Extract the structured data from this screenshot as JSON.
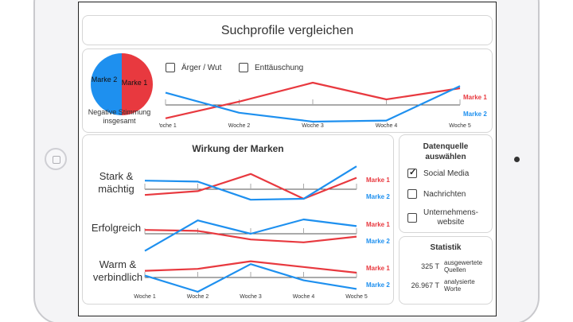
{
  "page_title": "Suchprofile vergleichen",
  "colors": {
    "marke1": "#e8393f",
    "marke2": "#1e90ef",
    "axis": "#555555"
  },
  "weeks": [
    "Woche 1",
    "Woche 2",
    "Woche 3",
    "Woche 4",
    "Woche 5"
  ],
  "top": {
    "pie": {
      "slices": [
        {
          "label": "Marke 1",
          "value": 50
        },
        {
          "label": "Marke 2",
          "value": 50
        }
      ]
    },
    "pie_caption_line1": "Negative Stimmung",
    "pie_caption_line2": "insgesamt",
    "filters": [
      {
        "label": "Ärger / Wut",
        "checked": false
      },
      {
        "label": "Enttäuschung",
        "checked": false
      }
    ]
  },
  "main": {
    "title": "Wirkung der Marken",
    "rows": [
      {
        "label_line1": "Stark &",
        "label_line2": "mächtig"
      },
      {
        "label_line1": "Erfolgreich",
        "label_line2": ""
      },
      {
        "label_line1": "Warm &",
        "label_line2": "verbindlich"
      }
    ]
  },
  "source": {
    "title_line1": "Datenquelle",
    "title_line2": "auswählen",
    "options": [
      {
        "label_line1": "Social Media",
        "label_line2": "",
        "checked": true
      },
      {
        "label_line1": "Nachrichten",
        "label_line2": "",
        "checked": false
      },
      {
        "label_line1": "Unternehmens-",
        "label_line2": "website",
        "checked": false
      }
    ]
  },
  "stats": {
    "title": "Statistik",
    "items": [
      {
        "value": "325 T",
        "desc_line1": "ausgewertete",
        "desc_line2": "Quellen"
      },
      {
        "value": "26.967 T",
        "desc_line1": "analysierte",
        "desc_line2": "Worte"
      }
    ]
  },
  "chart_data": [
    {
      "type": "line",
      "title": "",
      "categories": [
        "Woche 1",
        "Woche 2",
        "Woche 3",
        "Woche 4",
        "Woche 5"
      ],
      "series": [
        {
          "name": "Marke 1",
          "values": [
            -0.6,
            0.15,
            1.0,
            0.25,
            0.75
          ]
        },
        {
          "name": "Marke 2",
          "values": [
            0.55,
            -0.35,
            -0.75,
            -0.7,
            0.85
          ]
        }
      ],
      "ylim": [
        -1,
        1
      ]
    },
    {
      "type": "line",
      "title": "Stark & mächtig",
      "categories": [
        "Woche 1",
        "Woche 2",
        "Woche 3",
        "Woche 4",
        "Woche 5"
      ],
      "series": [
        {
          "name": "Marke 1",
          "values": [
            -0.3,
            -0.1,
            0.8,
            -0.5,
            0.6
          ]
        },
        {
          "name": "Marke 2",
          "values": [
            0.45,
            0.4,
            -0.55,
            -0.5,
            1.2
          ]
        }
      ],
      "ylim": [
        -1,
        1
      ]
    },
    {
      "type": "line",
      "title": "Erfolgreich",
      "categories": [
        "Woche 1",
        "Woche 2",
        "Woche 3",
        "Woche 4",
        "Woche 5"
      ],
      "series": [
        {
          "name": "Marke 1",
          "values": [
            0.2,
            0.15,
            -0.3,
            -0.45,
            -0.15
          ]
        },
        {
          "name": "Marke 2",
          "values": [
            -0.9,
            0.7,
            0.0,
            0.75,
            0.4
          ]
        }
      ],
      "ylim": [
        -1,
        1
      ]
    },
    {
      "type": "line",
      "title": "Warm & verbindlich",
      "categories": [
        "Woche 1",
        "Woche 2",
        "Woche 3",
        "Woche 4",
        "Woche 5"
      ],
      "series": [
        {
          "name": "Marke 1",
          "values": [
            0.35,
            0.45,
            0.85,
            0.55,
            0.25
          ]
        },
        {
          "name": "Marke 2",
          "values": [
            0.1,
            -0.75,
            0.7,
            -0.15,
            -0.6
          ]
        }
      ],
      "ylim": [
        -1,
        1
      ]
    }
  ]
}
